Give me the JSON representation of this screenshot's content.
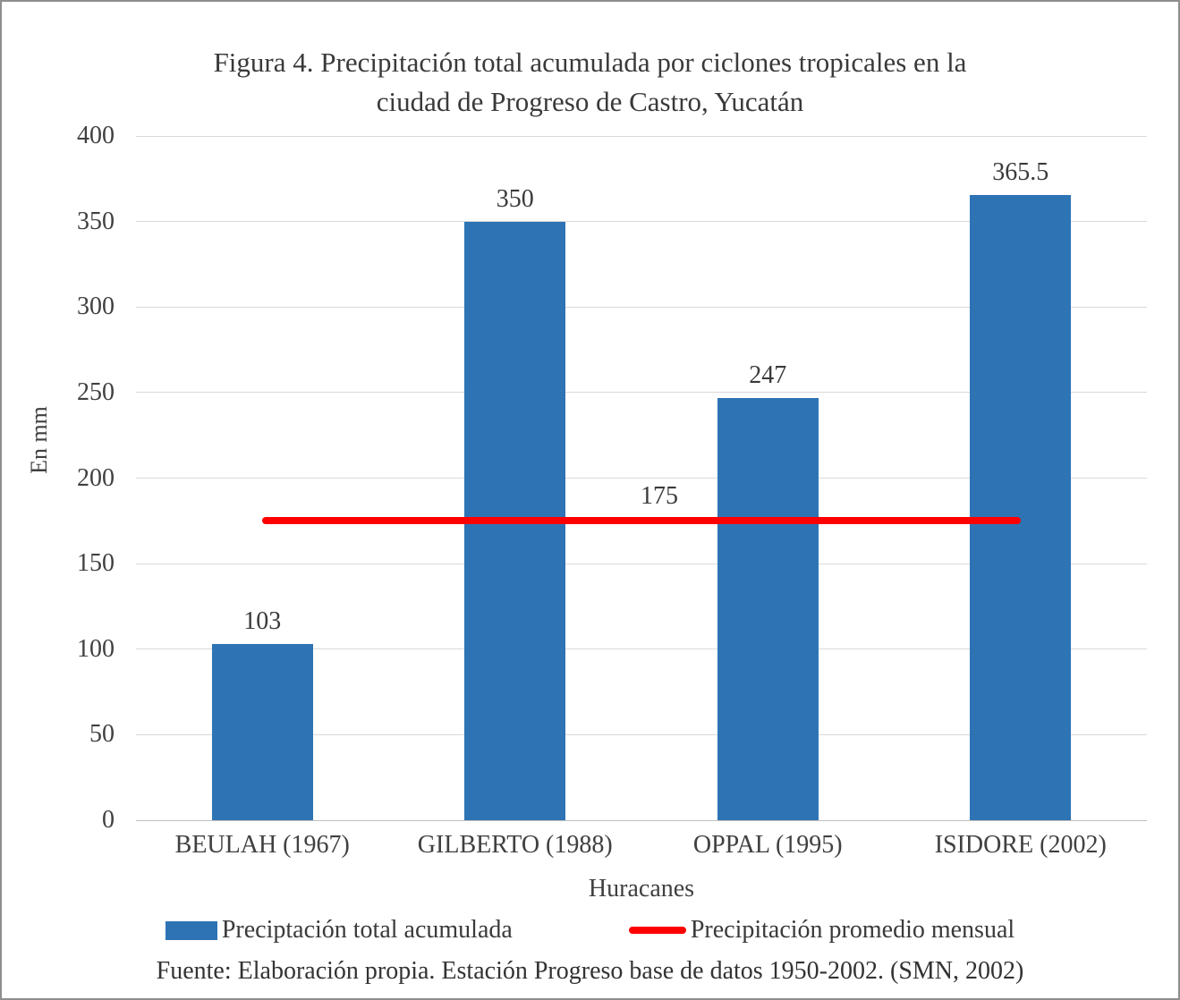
{
  "figure": {
    "title_line1": "Figura 4. Precipitación total acumulada por ciclones tropicales en la",
    "title_line2": "ciudad de Progreso de Castro, Yucatán"
  },
  "chart_data": {
    "type": "bar",
    "title": "Figura 4. Precipitación total acumulada por ciclones tropicales en la ciudad de Progreso de Castro, Yucatán",
    "categories": [
      "BEULAH (1967)",
      "GILBERTO (1988)",
      "OPPAL (1995)",
      "ISIDORE (2002)"
    ],
    "values": [
      103,
      350,
      247,
      365.5
    ],
    "xlabel": "Huracanes",
    "ylabel": "En mm",
    "ylim": [
      0,
      400
    ],
    "yticks": [
      0,
      50,
      100,
      150,
      200,
      250,
      300,
      350,
      400
    ],
    "grid": true,
    "average_line": {
      "value": 175,
      "label": "175"
    },
    "colors": {
      "bar": "#2e74b5",
      "average_line": "#ff0000",
      "grid": "#d9d9d9"
    },
    "legend_position": "bottom",
    "legend": [
      {
        "type": "bar",
        "label": "Preciptación total acumulada",
        "color": "#2e74b5"
      },
      {
        "type": "line",
        "label": "Precipitación promedio mensual",
        "color": "#ff0000"
      }
    ]
  },
  "footer": {
    "source": "Fuente: Elaboración propia. Estación Progreso base de datos 1950-2002. (SMN, 2002)"
  }
}
